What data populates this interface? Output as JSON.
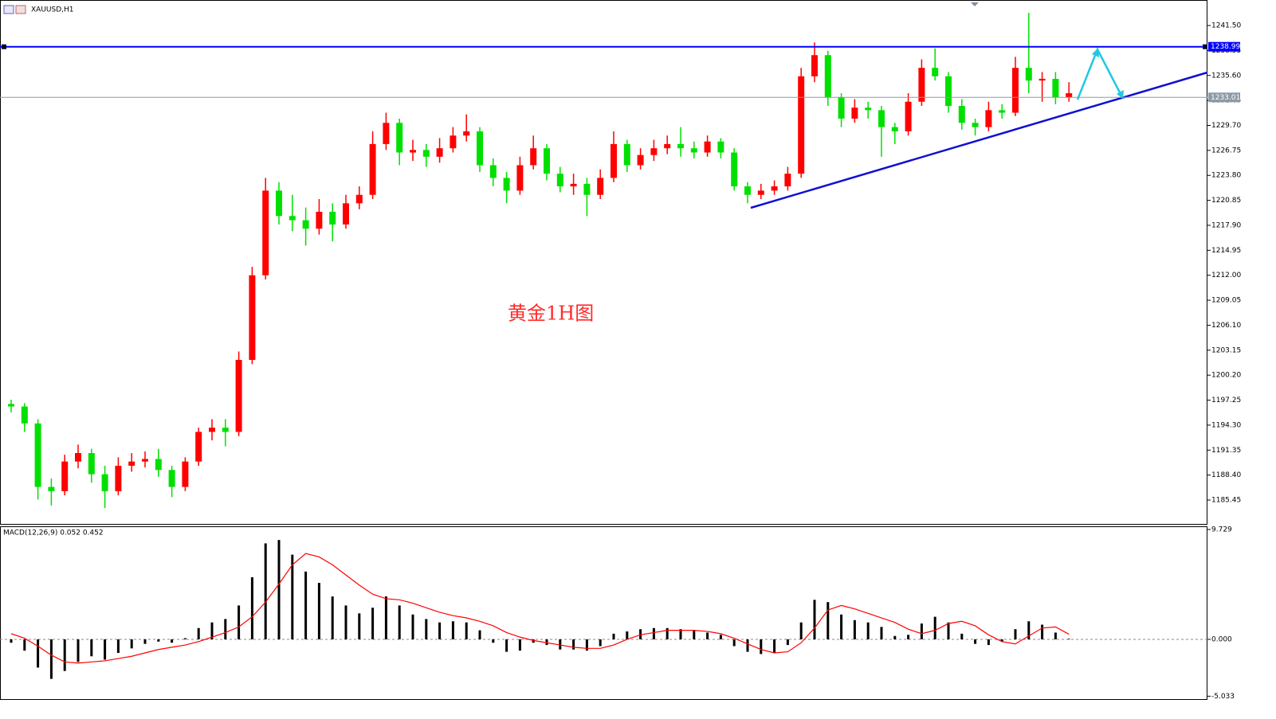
{
  "chart_data": {
    "type": "candlestick",
    "title": "XAUUSD,H1",
    "annotation": "黄金1H图",
    "up_color": "#ff0000",
    "down_color": "#00e000",
    "open": [
      1196.8,
      1196.5,
      1194.5,
      1187,
      1186.5,
      1190,
      1191,
      1188.5,
      1186.5,
      1189.5,
      1190,
      1190.3,
      1189,
      1187,
      1190,
      1193.5,
      1194,
      1193.5,
      1202,
      1212,
      1222,
      1219,
      1218.5,
      1217.5,
      1219.5,
      1218,
      1220.5,
      1221.5,
      1227.5,
      1230,
      1226.5,
      1226.8,
      1226,
      1227,
      1228.5,
      1229,
      1225,
      1223.5,
      1222,
      1225,
      1227,
      1224,
      1222.5,
      1222.8,
      1221.5,
      1223.5,
      1227.5,
      1225,
      1226.2,
      1227,
      1227.5,
      1227,
      1226.5,
      1227.8,
      1226.5,
      1222.5,
      1221.5,
      1222,
      1222.5,
      1224,
      1235.5,
      1238,
      1233,
      1230.5,
      1231.8,
      1231.5,
      1229.5,
      1229,
      1232.5,
      1236.5,
      1235.5,
      1232,
      1230,
      1229.5,
      1231.5,
      1231.2,
      1236.5,
      1235,
      1235.2,
      1233
    ],
    "high": [
      1197.3,
      1196.9,
      1195,
      1188,
      1190.8,
      1192,
      1191.5,
      1189.5,
      1190.5,
      1191,
      1191.2,
      1191.5,
      1189.5,
      1190.5,
      1194,
      1195,
      1195,
      1203,
      1213,
      1223.5,
      1223,
      1221.5,
      1220,
      1221,
      1220.5,
      1221.5,
      1222.5,
      1229,
      1231.2,
      1230.5,
      1228,
      1227.5,
      1228.2,
      1229.5,
      1231,
      1229.5,
      1225.8,
      1224.2,
      1226,
      1228.5,
      1227.5,
      1224.8,
      1224,
      1223.5,
      1224.5,
      1229,
      1228,
      1227,
      1228,
      1228.5,
      1229.5,
      1227.8,
      1228.5,
      1228.2,
      1227,
      1223,
      1222.8,
      1223.2,
      1224.8,
      1236.5,
      1239.5,
      1238.5,
      1233.5,
      1232.8,
      1232.5,
      1232,
      1230,
      1233.5,
      1237.5,
      1238.8,
      1236,
      1232.8,
      1230.5,
      1232.5,
      1232.2,
      1237.8,
      1243,
      1236,
      1236,
      1234.8
    ],
    "low": [
      1195.8,
      1193.5,
      1185.5,
      1184.8,
      1186,
      1189.2,
      1187.5,
      1184.5,
      1186,
      1188.8,
      1189.3,
      1188.2,
      1185.8,
      1186.5,
      1189.5,
      1192.5,
      1191.8,
      1193,
      1201.5,
      1211.5,
      1218,
      1217.2,
      1215.5,
      1216.8,
      1216,
      1217.5,
      1219.8,
      1221,
      1226.8,
      1225,
      1225.5,
      1224.8,
      1225.3,
      1226.5,
      1227.8,
      1224.2,
      1222.5,
      1220.5,
      1221.5,
      1224.5,
      1223.2,
      1221.8,
      1221.5,
      1219,
      1221,
      1223,
      1224.2,
      1224.5,
      1225.5,
      1226.3,
      1226,
      1225.8,
      1226,
      1225.8,
      1222,
      1220.5,
      1221,
      1221.5,
      1222,
      1223.5,
      1234.8,
      1232,
      1229.5,
      1230,
      1230.5,
      1226,
      1227.5,
      1228.5,
      1232,
      1235,
      1231.2,
      1229.2,
      1228.5,
      1229,
      1230.5,
      1230.8,
      1233.5,
      1232.5,
      1232.2,
      1232.5
    ],
    "close": [
      1196.5,
      1194.5,
      1187,
      1186.5,
      1190,
      1191,
      1188.5,
      1186.5,
      1189.5,
      1190,
      1190.3,
      1189,
      1187,
      1190,
      1193.5,
      1194,
      1193.5,
      1202,
      1212,
      1222,
      1219,
      1218.5,
      1217.5,
      1219.5,
      1218,
      1220.5,
      1221.5,
      1227.5,
      1230,
      1226.5,
      1226.8,
      1226,
      1227,
      1228.5,
      1229,
      1225,
      1223.5,
      1222,
      1225,
      1227,
      1224,
      1222.5,
      1222.8,
      1221.5,
      1223.5,
      1227.5,
      1225,
      1226.2,
      1227,
      1227.5,
      1227,
      1226.5,
      1227.8,
      1226.5,
      1222.5,
      1221.5,
      1222,
      1222.5,
      1224,
      1235.5,
      1238,
      1233,
      1230.5,
      1231.8,
      1231.5,
      1229.5,
      1229,
      1232.5,
      1236.5,
      1235.5,
      1232,
      1230,
      1229.5,
      1231.5,
      1231.2,
      1236.5,
      1235,
      1235.2,
      1233,
      1233.5
    ],
    "ylim": [
      1182.63,
      1244.23
    ],
    "yticks": [
      {
        "value": 1241.5,
        "label": "1241.50"
      },
      1238.55,
      {
        "value": 1235.6,
        "label": "1235.60"
      },
      1232.65,
      {
        "value": 1229.7,
        "label": "1229.70"
      },
      1226.75,
      {
        "value": 1223.8,
        "label": "1223.80"
      },
      1220.85,
      {
        "value": 1217.9,
        "label": "1217.90"
      },
      1214.95,
      {
        "value": 1212,
        "label": "1212.00"
      },
      1209.05,
      {
        "value": 1206.1,
        "label": "1206.10"
      },
      1203.15,
      {
        "value": 1200.2,
        "label": "1200.20"
      },
      1197.25,
      {
        "value": 1194.3,
        "label": "1194.30"
      },
      1191.35,
      {
        "value": 1188.4,
        "label": "1188.40"
      },
      1185.45
    ],
    "levels": [
      {
        "value": 1238.99,
        "color": "#0000ff"
      },
      {
        "value": 1233.01,
        "color": "#8c9aa6"
      }
    ],
    "indicator": {
      "type": "macd",
      "label": "MACD(12,26,9) 0.052 0.452",
      "histogram_color": "#000000",
      "signal_color": "#ff0000",
      "histogram": [
        -0.3,
        -1,
        -2.5,
        -3.5,
        -2.8,
        -2,
        -1.5,
        -1.8,
        -1.2,
        -0.8,
        -0.4,
        -0.2,
        -0.3,
        0.1,
        1,
        1.5,
        1.8,
        3,
        5.5,
        8.5,
        8.8,
        7.5,
        6,
        5,
        3.8,
        3,
        2.3,
        2.8,
        3.8,
        3,
        2.2,
        1.8,
        1.5,
        1.6,
        1.5,
        0.8,
        -0.3,
        -1.1,
        -1,
        -0.3,
        -0.5,
        -0.9,
        -0.9,
        -1,
        -0.6,
        0.5,
        0.7,
        0.9,
        1,
        1,
        0.9,
        0.8,
        0.6,
        0.4,
        -0.6,
        -1.1,
        -1.3,
        -1.2,
        -0.5,
        1.5,
        3.5,
        3.3,
        2.2,
        1.7,
        1.5,
        1.1,
        0.3,
        0.4,
        1.4,
        2,
        1.5,
        0.5,
        -0.4,
        -0.5,
        -0.2,
        0.9,
        1.6,
        1.3,
        0.6,
        0.052
      ],
      "signal": [
        0.5,
        0.1,
        -0.6,
        -1.4,
        -2.0,
        -2.1,
        -2.0,
        -1.9,
        -1.7,
        -1.5,
        -1.2,
        -0.9,
        -0.7,
        -0.5,
        -0.2,
        0.2,
        0.6,
        1.1,
        2.0,
        3.3,
        4.9,
        6.6,
        7.6,
        7.3,
        6.6,
        5.7,
        4.8,
        4.0,
        3.6,
        3.5,
        3.2,
        2.8,
        2.4,
        2.1,
        1.9,
        1.6,
        1.2,
        0.6,
        0.2,
        -0.1,
        -0.3,
        -0.5,
        -0.7,
        -0.8,
        -0.8,
        -0.5,
        0,
        0.4,
        0.6,
        0.8,
        0.8,
        0.8,
        0.7,
        0.5,
        0.1,
        -0.4,
        -0.9,
        -1.2,
        -1.1,
        -0.3,
        1.0,
        2.6,
        3.0,
        2.7,
        2.3,
        1.9,
        1.5,
        0.9,
        0.5,
        0.8,
        1.4,
        1.6,
        1.2,
        0.4,
        -0.2,
        -0.4,
        0.3,
        1.0,
        1.1,
        0.452
      ],
      "ylim": [
        -5.29,
        10.01
      ],
      "yticks": [
        9.729,
        {
          "value": 0,
          "label": "0.000"
        },
        -5.033
      ]
    }
  }
}
